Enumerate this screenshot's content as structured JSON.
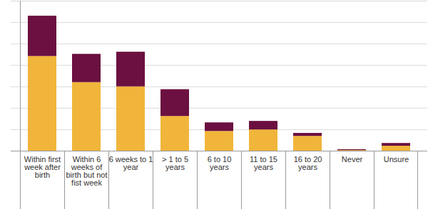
{
  "chart_data": {
    "type": "bar",
    "stacked": true,
    "categories": [
      "Within first week after birth",
      "Within 6 weeks of birth but not fist week",
      "6 weeks to 1 year",
      "> 1 to 5 years",
      "6 to 10 years",
      "11 to 15 years",
      "16 to 20 years",
      "Never",
      "Unsure"
    ],
    "series": [
      {
        "color": "#f0b53a",
        "values": [
          4.42,
          3.2,
          3.0,
          1.62,
          0.92,
          0.99,
          0.69,
          0.03,
          0.23
        ]
      },
      {
        "color": "#6b1040",
        "values": [
          1.88,
          1.32,
          1.62,
          1.25,
          0.4,
          0.4,
          0.14,
          0.04,
          0.13
        ]
      }
    ],
    "ylim": [
      0,
      7
    ],
    "yticks": [
      0,
      1,
      2,
      3,
      4,
      5,
      6,
      7
    ],
    "grid": true,
    "tick_labels": "x"
  }
}
